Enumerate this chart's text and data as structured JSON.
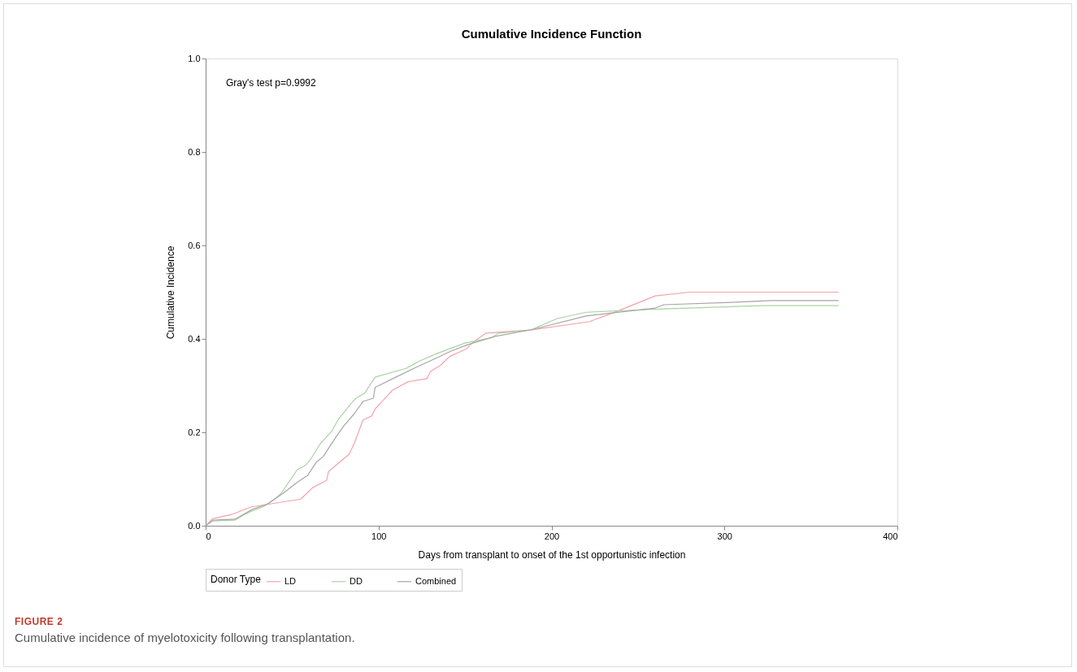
{
  "chart_data": {
    "type": "line",
    "title": "Cumulative Incidence Function",
    "xlabel": "Days from transplant to onset of the 1st opportunistic infection",
    "ylabel": "Cumulative Incidence",
    "legend_title": "Donor Type",
    "legend": "bottom",
    "grid": false,
    "line_style": "solid",
    "xlim": [
      0,
      400
    ],
    "xticks": [
      0,
      100,
      200,
      300,
      400
    ],
    "ylim": [
      0,
      1
    ],
    "yticks": [
      {
        "value": 0,
        "label": "0.0"
      },
      0.2,
      0.4,
      0.6,
      0.8,
      {
        "value": 1,
        "label": "1.0"
      }
    ],
    "annotations": [
      "Gray's test p=0.9992",
      "FIGURE 2",
      "Cumulative incidence of myelotoxicity following transplantation."
    ],
    "series": [
      {
        "name": "LD",
        "color": "#f4a3aa",
        "x": [
          0,
          4,
          15,
          26,
          55,
          62,
          70,
          71,
          83,
          86,
          91,
          96,
          98,
          102,
          108,
          117,
          128,
          130,
          136,
          141,
          151,
          154,
          162,
          169,
          188,
          222,
          238,
          260,
          280,
          366
        ],
        "values": [
          0,
          0.015,
          0.024,
          0.04,
          0.057,
          0.082,
          0.097,
          0.116,
          0.153,
          0.177,
          0.226,
          0.235,
          0.25,
          0.266,
          0.29,
          0.308,
          0.315,
          0.33,
          0.344,
          0.362,
          0.379,
          0.391,
          0.412,
          0.414,
          0.419,
          0.437,
          0.459,
          0.492,
          0.5,
          0.5
        ]
      },
      {
        "name": "DD",
        "color": "#a9d3a2",
        "x": [
          0,
          4,
          17,
          22,
          26,
          34,
          40,
          44,
          53,
          58,
          61,
          66,
          73,
          77,
          84,
          87,
          92,
          98,
          116,
          124,
          134,
          150,
          166,
          169,
          188,
          203,
          220,
          265,
          322,
          366
        ],
        "values": [
          0,
          0.01,
          0.012,
          0.023,
          0.03,
          0.042,
          0.057,
          0.071,
          0.12,
          0.13,
          0.144,
          0.174,
          0.203,
          0.229,
          0.261,
          0.273,
          0.284,
          0.318,
          0.337,
          0.353,
          0.369,
          0.391,
          0.403,
          0.412,
          0.419,
          0.443,
          0.457,
          0.464,
          0.471,
          0.471
        ]
      },
      {
        "name": "Combined",
        "color": "#a6a6a6",
        "x": [
          0,
          4,
          17,
          27,
          36,
          45,
          53,
          59,
          64,
          68,
          75,
          80,
          86,
          91,
          97,
          98,
          110,
          120,
          130,
          142,
          152,
          167,
          189,
          220,
          260,
          265,
          304,
          327,
          366
        ],
        "values": [
          0,
          0.012,
          0.014,
          0.035,
          0.047,
          0.07,
          0.093,
          0.108,
          0.136,
          0.148,
          0.188,
          0.214,
          0.24,
          0.266,
          0.273,
          0.296,
          0.318,
          0.336,
          0.353,
          0.374,
          0.388,
          0.405,
          0.42,
          0.449,
          0.466,
          0.473,
          0.478,
          0.482,
          0.482
        ]
      }
    ]
  }
}
